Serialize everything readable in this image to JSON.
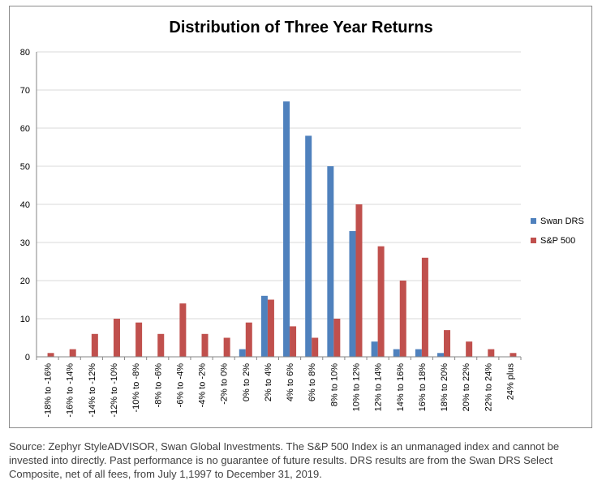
{
  "chart_data": {
    "type": "bar",
    "title": "Distribution of Three Year Returns",
    "xlabel": "",
    "ylabel": "",
    "ylim": [
      0,
      80
    ],
    "yticks": [
      0,
      10,
      20,
      30,
      40,
      50,
      60,
      70,
      80
    ],
    "grid": true,
    "legend_position": "right",
    "categories": [
      "-18% to -16%",
      "-16% to -14%",
      "-14% to -12%",
      "-12% to -10%",
      "-10% to -8%",
      "-8% to -6%",
      "-6% to -4%",
      "-4% to -2%",
      "-2% to 0%",
      "0% to 2%",
      "2% to 4%",
      "4% to 6%",
      "6% to 8%",
      "8% to 10%",
      "10% to 12%",
      "12% to 14%",
      "14% to 16%",
      "16% to 18%",
      "18% to 20%",
      "20% to 22%",
      "22% to 24%",
      "24% plus"
    ],
    "series": [
      {
        "name": "Swan DRS",
        "color": "#4f81bd",
        "values": [
          0,
          0,
          0,
          0,
          0,
          0,
          0,
          0,
          0,
          2,
          16,
          67,
          58,
          50,
          33,
          4,
          2,
          2,
          1,
          0,
          0,
          0
        ]
      },
      {
        "name": "S&P 500",
        "color": "#c0504d",
        "values": [
          1,
          2,
          6,
          10,
          9,
          6,
          14,
          6,
          5,
          9,
          15,
          8,
          5,
          10,
          40,
          29,
          20,
          26,
          7,
          4,
          2,
          1
        ]
      }
    ]
  },
  "source_note": "Source: Zephyr StyleADVISOR, Swan Global Investments. The S&P 500 Index is an unmanaged index and cannot be invested into directly. Past performance is no guarantee of future results. DRS results are from the Swan DRS Select Composite, net of all fees, from July 1,1997 to December 31, 2019."
}
